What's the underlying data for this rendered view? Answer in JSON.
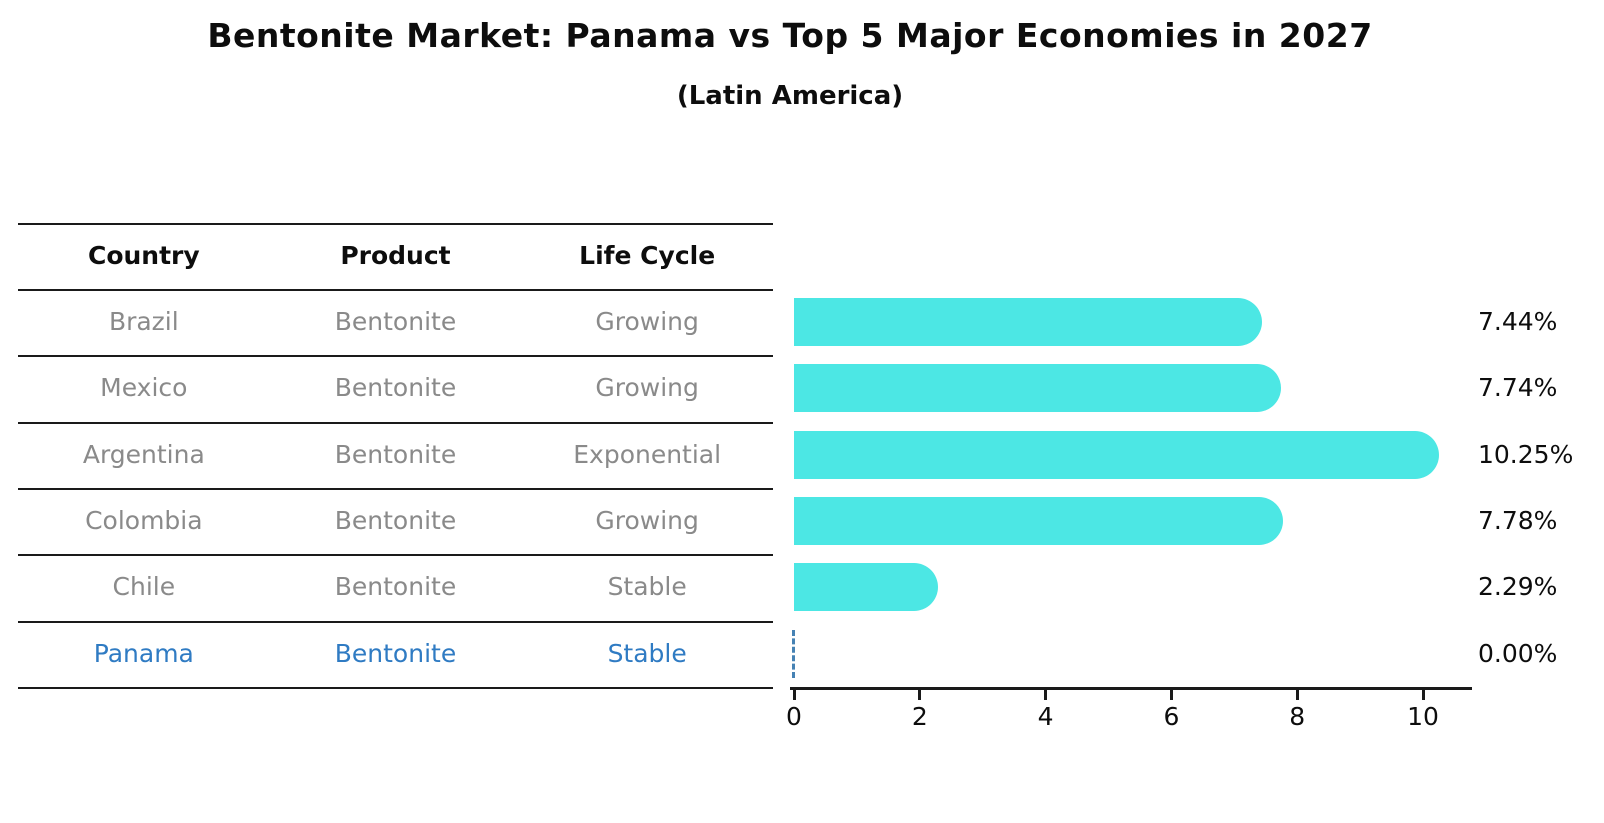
{
  "title": "Bentonite Market: Panama vs Top 5 Major Economies in 2027",
  "subtitle": "(Latin America)",
  "table": {
    "headers": [
      "Country",
      "Product",
      "Life Cycle"
    ],
    "rows": [
      {
        "country": "Brazil",
        "product": "Bentonite",
        "life_cycle": "Growing",
        "highlight": false
      },
      {
        "country": "Mexico",
        "product": "Bentonite",
        "life_cycle": "Growing",
        "highlight": false
      },
      {
        "country": "Argentina",
        "product": "Bentonite",
        "life_cycle": "Exponential",
        "highlight": false
      },
      {
        "country": "Colombia",
        "product": "Bentonite",
        "life_cycle": "Growing",
        "highlight": false
      },
      {
        "country": "Chile",
        "product": "Bentonite",
        "life_cycle": "Stable",
        "highlight": false
      },
      {
        "country": "Panama",
        "product": "Bentonite",
        "life_cycle": "Stable",
        "highlight": true
      }
    ]
  },
  "chart_data": {
    "type": "bar",
    "orientation": "horizontal",
    "categories": [
      "Brazil",
      "Mexico",
      "Argentina",
      "Colombia",
      "Chile",
      "Panama"
    ],
    "values": [
      7.44,
      7.74,
      10.25,
      7.78,
      2.29,
      0.0
    ],
    "value_labels": [
      "7.44%",
      "7.74%",
      "10.25%",
      "7.78%",
      "2.29%",
      "0.00%"
    ],
    "x_tick_labels": [
      "0",
      "2",
      "4",
      "6",
      "8",
      "10"
    ],
    "x_ticks": [
      0,
      2,
      4,
      6,
      8,
      10
    ],
    "xlim": [
      0,
      10.78
    ],
    "grid": false,
    "legend": false,
    "bar_color": "#4ce7e4",
    "zero_marker_color": "#4682b4",
    "zero_marker_style": "dashed"
  },
  "colors": {
    "title_text": "#0d0d0d",
    "table_text": "#8a8a8a",
    "highlight_text": "#2f7bc3",
    "line": "#1a1a1a",
    "value_text": "#0d0d0d"
  }
}
